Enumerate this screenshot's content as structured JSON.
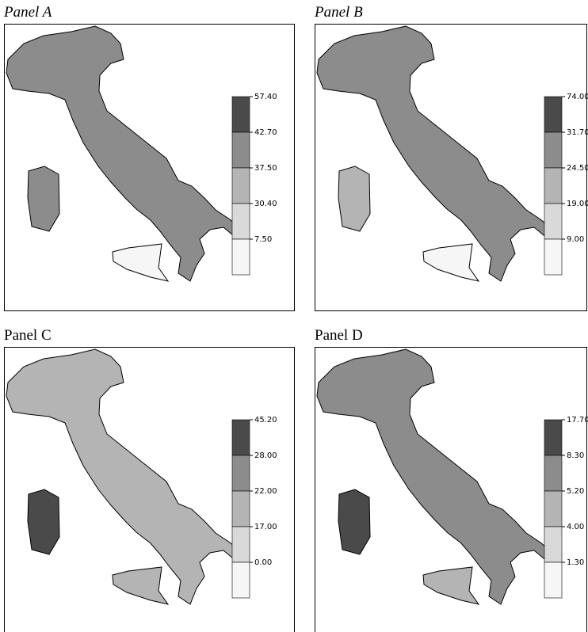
{
  "panels": [
    {
      "title": "Panel A",
      "italic": true,
      "breaks": [
        "57.40",
        "42.70",
        "37.50",
        "30.40",
        "7.50"
      ]
    },
    {
      "title": "Panel B",
      "italic": true,
      "breaks": [
        "74.00",
        "31.70",
        "24.50",
        "19.00",
        "9.00"
      ]
    },
    {
      "title": "Panel C",
      "italic": false,
      "breaks": [
        "45.20",
        "28.00",
        "22.00",
        "17.00",
        "0.00"
      ]
    },
    {
      "title": "Panel D",
      "italic": false,
      "breaks": [
        "17.70",
        "8.30",
        "5.20",
        "4.00",
        "1.30"
      ]
    }
  ],
  "bin_colors": [
    "#4a4a4a",
    "#8c8c8c",
    "#b4b4b4",
    "#d9d9d9",
    "#f6f6f6"
  ]
}
